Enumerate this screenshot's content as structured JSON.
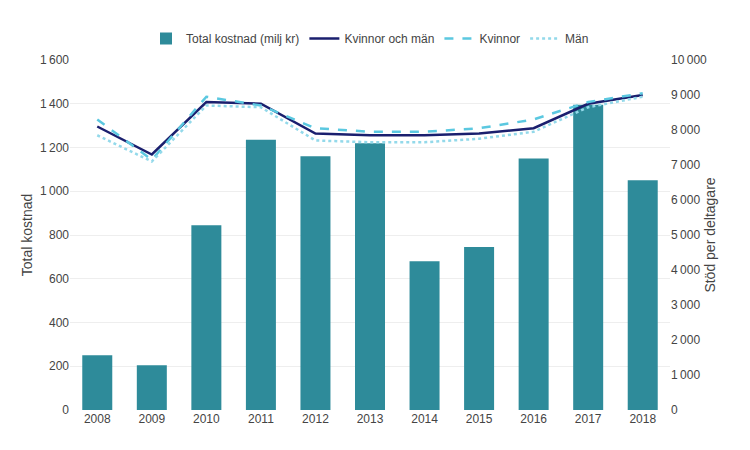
{
  "chart_data": {
    "type": "bar",
    "categories": [
      "2008",
      "2009",
      "2010",
      "2011",
      "2012",
      "2013",
      "2014",
      "2015",
      "2016",
      "2017",
      "2018"
    ],
    "ylabel": "Total kostnad",
    "y2label": "Stöd per deltagare",
    "series": [
      {
        "name": "Total kostnad (milj kr)",
        "type": "bar",
        "color": "#2e8b9a",
        "values": [
          250,
          205,
          845,
          1235,
          1160,
          1220,
          680,
          745,
          1150,
          1395,
          1050
        ]
      },
      {
        "name": "Kvinnor och män",
        "type": "line",
        "axis": "y2",
        "color": "#1a1f6e",
        "line_style": "solid",
        "values": [
          8100,
          7300,
          8800,
          8750,
          7900,
          7850,
          7850,
          7900,
          8050,
          8750,
          9000
        ]
      },
      {
        "name": "Kvinnor",
        "type": "line",
        "axis": "y2",
        "color": "#5bc8e0",
        "line_style": "dashed",
        "values": [
          8300,
          7150,
          8950,
          8700,
          8050,
          7950,
          7950,
          8050,
          8300,
          8800,
          9050
        ]
      },
      {
        "name": "Män",
        "type": "line",
        "axis": "y2",
        "color": "#93d9ea",
        "line_style": "dotted",
        "values": [
          7850,
          7100,
          8700,
          8650,
          7700,
          7650,
          7650,
          7750,
          7950,
          8650,
          8950
        ]
      }
    ],
    "ylim": [
      0,
      1600
    ],
    "yticks": [
      0,
      200,
      400,
      600,
      800,
      {
        "value": 1000,
        "label": "1 000"
      },
      {
        "value": 1200,
        "label": "1 200"
      },
      {
        "value": 1400,
        "label": "1 400"
      },
      {
        "value": 1600,
        "label": "1 600"
      }
    ],
    "y2lim": [
      0,
      10000
    ],
    "y2ticks": [
      0,
      {
        "value": 1000,
        "label": "1 000"
      },
      {
        "value": 2000,
        "label": "2 000"
      },
      {
        "value": 3000,
        "label": "3 000"
      },
      {
        "value": 4000,
        "label": "4 000"
      },
      {
        "value": 5000,
        "label": "5 000"
      },
      {
        "value": 6000,
        "label": "6 000"
      },
      {
        "value": 7000,
        "label": "7 000"
      },
      {
        "value": 8000,
        "label": "8 000"
      },
      {
        "value": 9000,
        "label": "9 000"
      },
      {
        "value": 10000,
        "label": "10 000"
      }
    ],
    "grid": true,
    "legend": "top"
  }
}
